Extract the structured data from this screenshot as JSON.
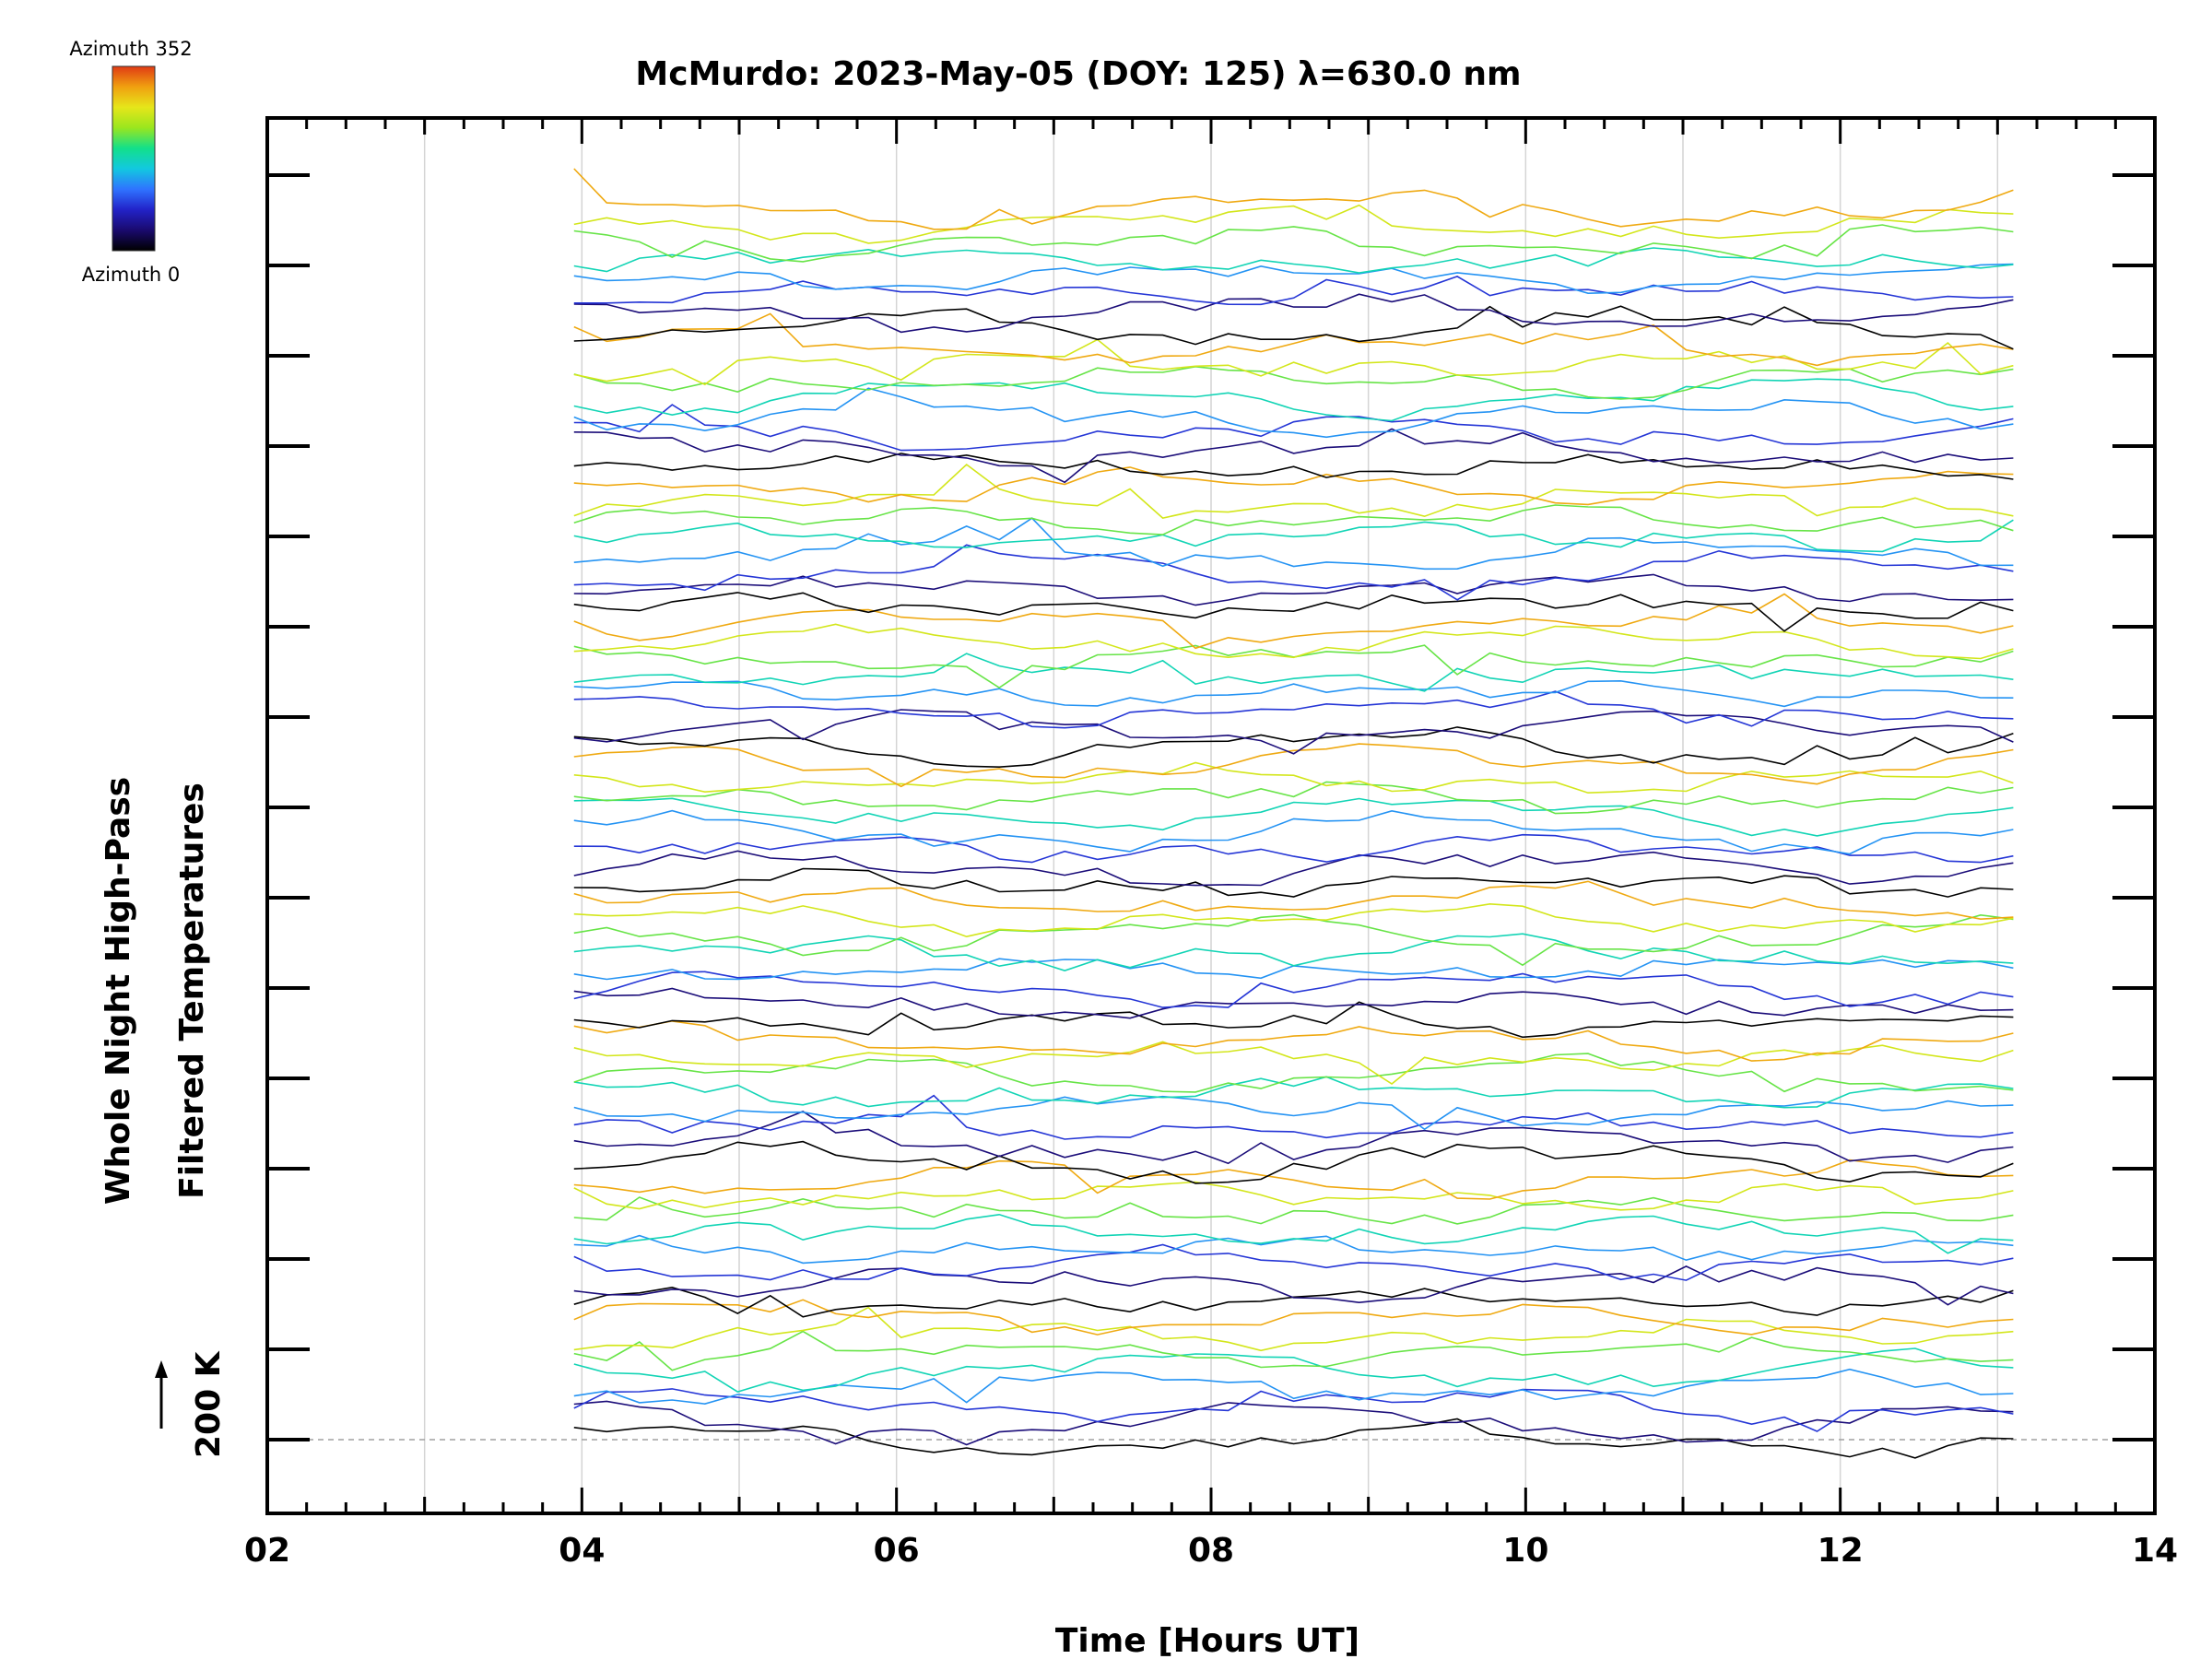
{
  "chart_data": {
    "type": "line",
    "title": "McMurdo: 2023-May-05 (DOY: 125) λ=630.0 nm",
    "xlabel": "Time [Hours UT]",
    "ylabel_lines": [
      "Whole Night High-Pass",
      "Filtered Temperatures"
    ],
    "scale_label": "200 K",
    "xlim": [
      2,
      14
    ],
    "x_ticks": [
      "02",
      "04",
      "06",
      "08",
      "10",
      "12",
      "14"
    ],
    "time_start": 3.95,
    "time_end": 13.1,
    "num_samples": 45,
    "azimuth_steps": 8,
    "azimuth_step_deg": 44,
    "num_cycles": 9,
    "colorbar": {
      "max_label": "Azimuth 352",
      "min_label": "Azimuth 0"
    },
    "colormap": [
      "#000000",
      "#1a0a6e",
      "#2222c8",
      "#2f73ff",
      "#12c8e0",
      "#12e08a",
      "#9ae61e",
      "#e6e61a",
      "#f0a010",
      "#e03a14"
    ],
    "axis_color": "#000000",
    "grid_color": "#d4d4d4",
    "baseline_color": "#a0a0a0"
  }
}
